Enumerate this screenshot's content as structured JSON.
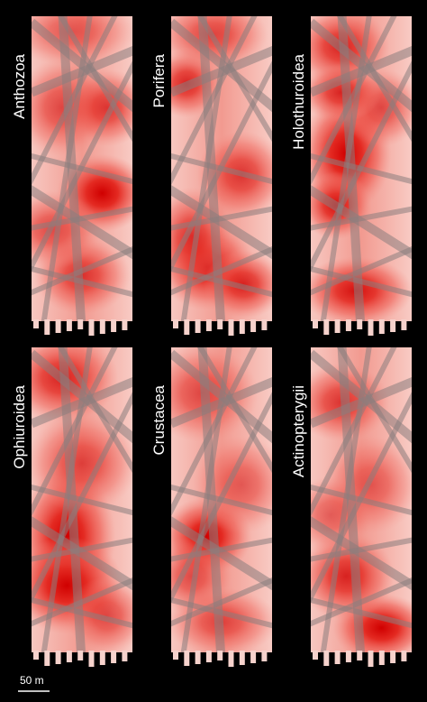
{
  "panels": [
    {
      "label": "Anthozoa"
    },
    {
      "label": "Porifera"
    },
    {
      "label": "Holothuroidea"
    },
    {
      "label": "Ophiuroidea"
    },
    {
      "label": "Crustacea"
    },
    {
      "label": "Actinopterygii"
    }
  ],
  "scale_bar": {
    "label": "50 m"
  }
}
